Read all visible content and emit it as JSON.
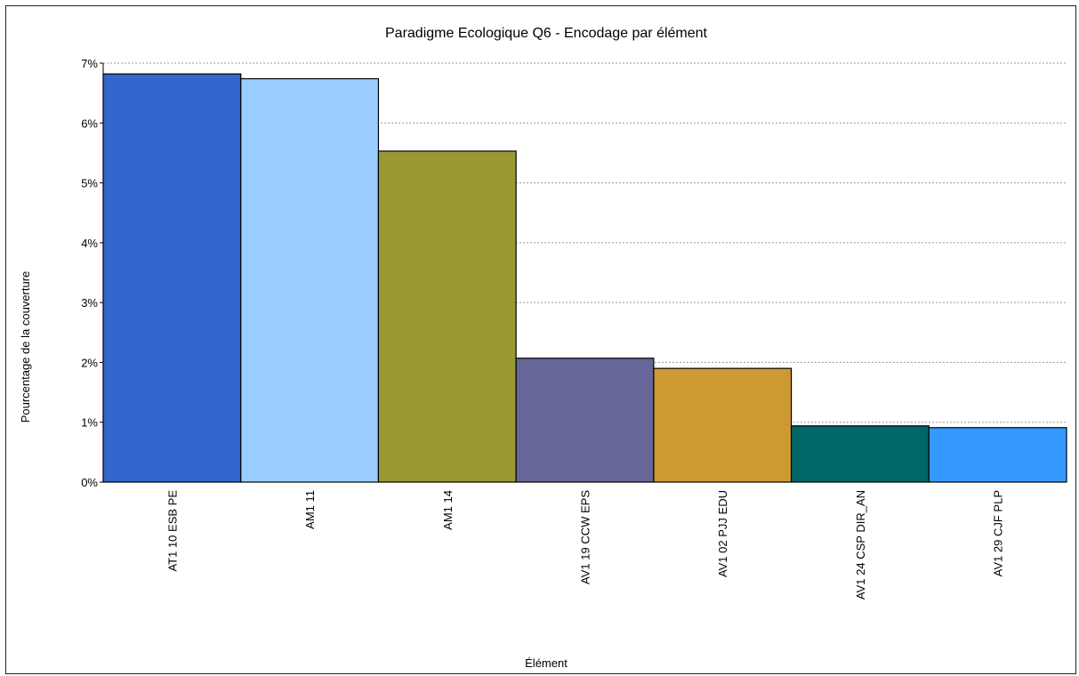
{
  "chart_data": {
    "type": "bar",
    "title": "Paradigme Ecologique Q6 - Encodage par élément",
    "xlabel": "Élément",
    "ylabel": "Pourcentage de la couverture",
    "ylim": [
      0,
      7
    ],
    "yticks": [
      "0%",
      "1%",
      "2%",
      "3%",
      "4%",
      "5%",
      "6%",
      "7%"
    ],
    "grid": true,
    "categories": [
      "AT1 10 ESB PE",
      "AM1 11",
      "AM1 14",
      "AV1 19 CCW EPS",
      "AV1 02 PJJ EDU",
      "AV1 24 CSP DIR_AN",
      "AV1 29 CJF PLP"
    ],
    "values": [
      6.82,
      6.74,
      5.53,
      2.07,
      1.9,
      0.94,
      0.91
    ],
    "colors": [
      "#3366CC",
      "#99CCFF",
      "#999933",
      "#666699",
      "#CC9933",
      "#006666",
      "#3399FF"
    ]
  }
}
